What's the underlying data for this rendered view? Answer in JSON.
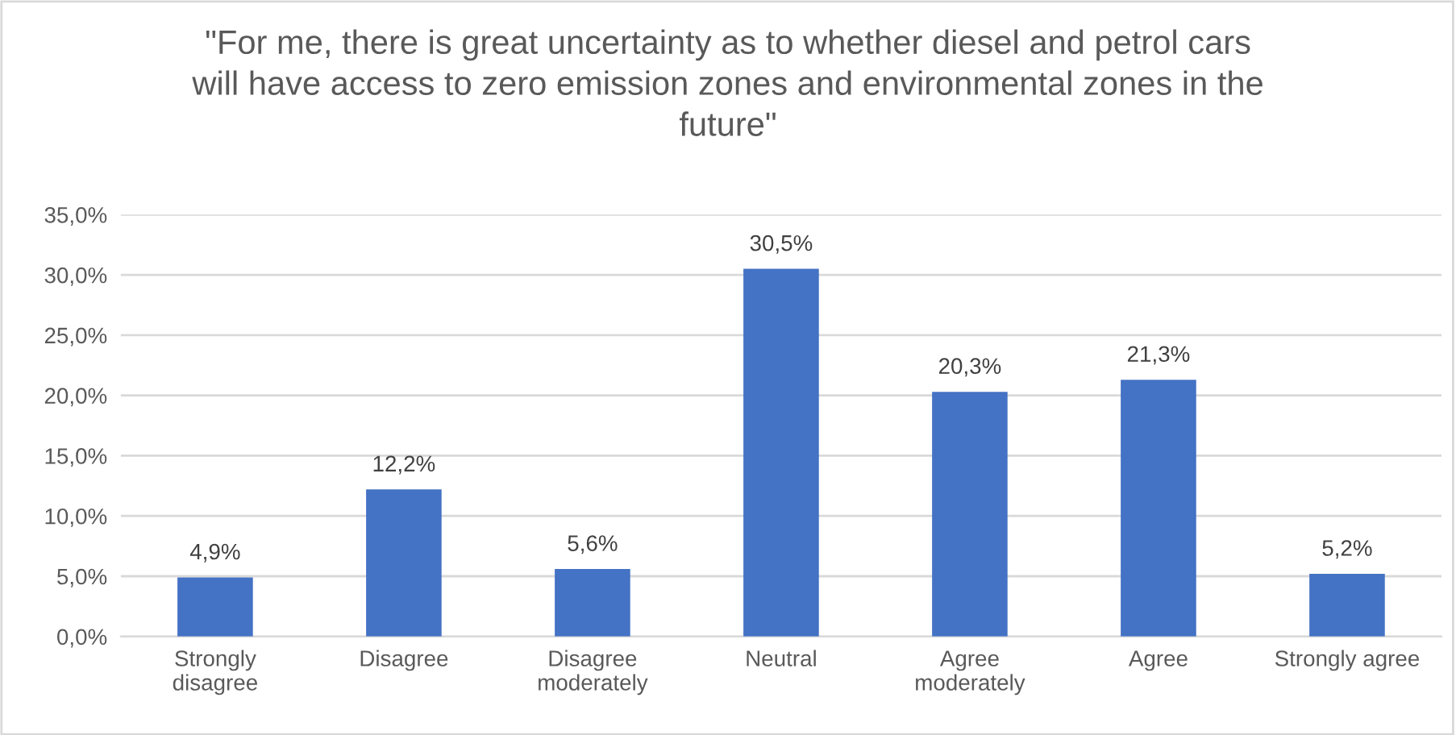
{
  "chart_data": {
    "type": "bar",
    "title": "\"For me, there is great uncertainty as to whether diesel and petrol cars\nwill have access to zero emission zones and environmental zones in the\nfuture\"",
    "categories": [
      "Strongly\ndisagree",
      "Disagree",
      "Disagree\nmoderately",
      "Neutral",
      "Agree\nmoderately",
      "Agree",
      "Strongly agree"
    ],
    "values": [
      4.9,
      12.2,
      5.6,
      30.5,
      20.3,
      21.3,
      5.2
    ],
    "value_labels": [
      "4,9%",
      "12,2%",
      "5,6%",
      "30,5%",
      "20,3%",
      "21,3%",
      "5,2%"
    ],
    "color": "#4472c4",
    "ylim": [
      0,
      35
    ],
    "yticks": [
      {
        "value": 0,
        "label": "0,0%"
      },
      {
        "value": 5,
        "label": "5,0%"
      },
      {
        "value": 10,
        "label": "10,0%"
      },
      {
        "value": 15,
        "label": "15,0%"
      },
      {
        "value": 20,
        "label": "20,0%"
      },
      {
        "value": 25,
        "label": "25,0%"
      },
      {
        "value": 30,
        "label": "30,0%"
      },
      {
        "value": 35,
        "label": "35,0%"
      }
    ],
    "grid": "y"
  }
}
